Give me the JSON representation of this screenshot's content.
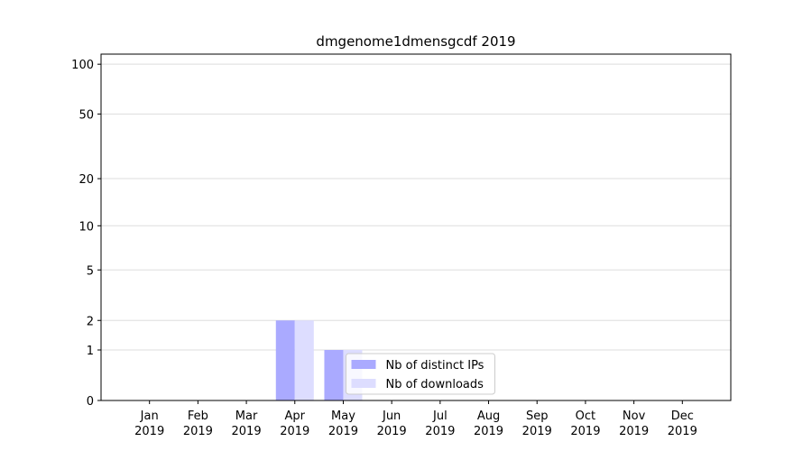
{
  "chart_data": {
    "type": "bar",
    "title": "dmgenome1dmensgcdf 2019",
    "categories": [
      "Jan 2019",
      "Feb 2019",
      "Mar 2019",
      "Apr 2019",
      "May 2019",
      "Jun 2019",
      "Jul 2019",
      "Aug 2019",
      "Sep 2019",
      "Oct 2019",
      "Nov 2019",
      "Dec 2019"
    ],
    "series": [
      {
        "name": "Nb of distinct IPs",
        "color": "#aaaaff",
        "values": [
          0,
          0,
          0,
          2,
          1,
          0,
          0,
          0,
          0,
          0,
          0,
          0
        ]
      },
      {
        "name": "Nb of downloads",
        "color": "#ddddff",
        "values": [
          0,
          0,
          0,
          2,
          1,
          0,
          0,
          0,
          0,
          0,
          0,
          0
        ]
      }
    ],
    "yscale": "log1p",
    "ylim": [
      0,
      115
    ],
    "yticks": [
      0,
      1,
      2,
      5,
      10,
      20,
      50,
      100
    ],
    "grid": true,
    "legend": "lower center"
  }
}
